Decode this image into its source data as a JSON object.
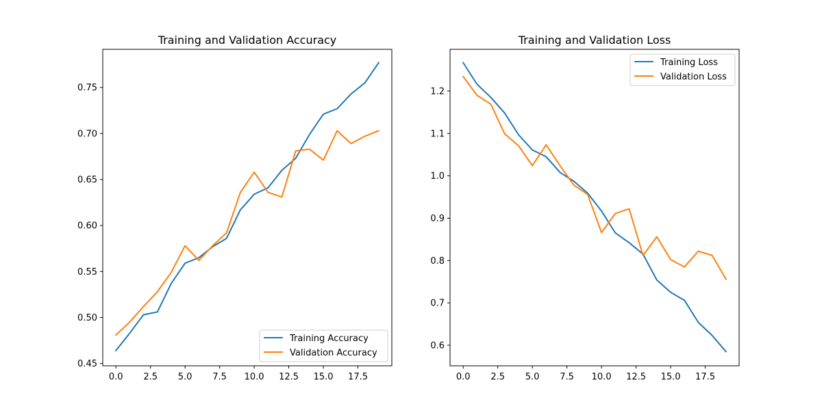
{
  "chart_data": [
    {
      "type": "line",
      "title": "Training and Validation Accuracy",
      "xlabel": "",
      "ylabel": "",
      "xlim": [
        -0.95,
        19.95
      ],
      "ylim": [
        0.4475,
        0.7915
      ],
      "xticks": [
        0,
        2.5,
        5,
        7.5,
        10,
        12.5,
        15,
        17.5
      ],
      "xtick_labels": [
        "0.0",
        "2.5",
        "5.0",
        "7.5",
        "10.0",
        "12.5",
        "15.0",
        "17.5"
      ],
      "yticks": [
        0.45,
        0.5,
        0.55,
        0.6,
        0.65,
        0.7,
        0.75
      ],
      "ytick_labels": [
        "0.45",
        "0.50",
        "0.55",
        "0.60",
        "0.65",
        "0.70",
        "0.75"
      ],
      "grid": false,
      "legend_position": "lower-right",
      "x": [
        0,
        1,
        2,
        3,
        4,
        5,
        6,
        7,
        8,
        9,
        10,
        11,
        12,
        13,
        14,
        15,
        16,
        17,
        18,
        19
      ],
      "series": [
        {
          "name": "Training Accuracy",
          "color": "#1f77b4",
          "values": [
            0.464,
            0.483,
            0.503,
            0.506,
            0.537,
            0.559,
            0.565,
            0.577,
            0.586,
            0.617,
            0.634,
            0.641,
            0.66,
            0.673,
            0.699,
            0.721,
            0.727,
            0.743,
            0.755,
            0.777
          ]
        },
        {
          "name": "Validation Accuracy",
          "color": "#ff7f0e",
          "values": [
            0.481,
            0.495,
            0.512,
            0.528,
            0.549,
            0.578,
            0.562,
            0.578,
            0.592,
            0.636,
            0.658,
            0.636,
            0.631,
            0.681,
            0.683,
            0.671,
            0.703,
            0.689,
            0.697,
            0.703
          ]
        }
      ]
    },
    {
      "type": "line",
      "title": "Training and Validation Loss",
      "xlabel": "",
      "ylabel": "",
      "xlim": [
        -0.95,
        19.95
      ],
      "ylim": [
        0.5515,
        1.2985
      ],
      "xticks": [
        0,
        2.5,
        5,
        7.5,
        10,
        12.5,
        15,
        17.5
      ],
      "xtick_labels": [
        "0.0",
        "2.5",
        "5.0",
        "7.5",
        "10.0",
        "12.5",
        "15.0",
        "17.5"
      ],
      "yticks": [
        0.6,
        0.7,
        0.8,
        0.9,
        1.0,
        1.1,
        1.2
      ],
      "ytick_labels": [
        "0.6",
        "0.7",
        "0.8",
        "0.9",
        "1.0",
        "1.1",
        "1.2"
      ],
      "grid": false,
      "legend_position": "upper-right",
      "x": [
        0,
        1,
        2,
        3,
        4,
        5,
        6,
        7,
        8,
        9,
        10,
        11,
        12,
        13,
        14,
        15,
        16,
        17,
        18,
        19
      ],
      "series": [
        {
          "name": "Training Loss",
          "color": "#1f77b4",
          "values": [
            1.267,
            1.216,
            1.185,
            1.148,
            1.097,
            1.061,
            1.045,
            1.008,
            0.987,
            0.959,
            0.917,
            0.865,
            0.842,
            0.815,
            0.754,
            0.725,
            0.706,
            0.654,
            0.623,
            0.585
          ]
        },
        {
          "name": "Validation Loss",
          "color": "#ff7f0e",
          "values": [
            1.234,
            1.19,
            1.169,
            1.099,
            1.071,
            1.024,
            1.073,
            1.024,
            0.978,
            0.956,
            0.866,
            0.911,
            0.922,
            0.812,
            0.856,
            0.802,
            0.785,
            0.822,
            0.812,
            0.756
          ]
        }
      ]
    }
  ]
}
